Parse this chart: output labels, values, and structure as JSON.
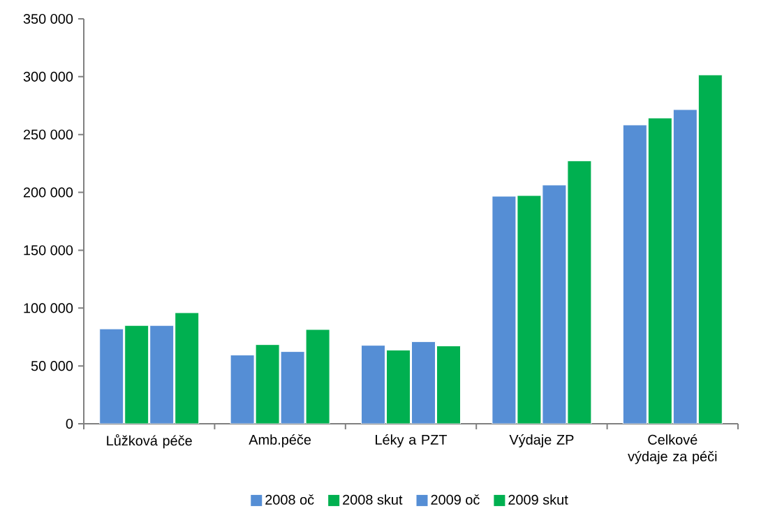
{
  "chart_data": {
    "type": "bar",
    "categories": [
      "Lůžková péče",
      "Amb.péče",
      "Léky a PZT",
      "Výdaje ZP",
      "Celkové výdaje za péči"
    ],
    "series": [
      {
        "name": "2008 oč",
        "color": "#558ed5",
        "values": [
          82000,
          59400,
          67800,
          196700,
          258300
        ]
      },
      {
        "name": "2008 skut",
        "color": "#00b050",
        "values": [
          85000,
          68400,
          63700,
          197300,
          264300
        ]
      },
      {
        "name": "2009 oč",
        "color": "#558ed5",
        "values": [
          85000,
          62400,
          71000,
          206400,
          271600
        ]
      },
      {
        "name": "2009 skut",
        "color": "#00b050",
        "values": [
          96000,
          81500,
          67300,
          227300,
          301600
        ]
      }
    ],
    "ylim": [
      0,
      350000
    ],
    "yticks": [
      {
        "value": 0,
        "label": "0"
      },
      {
        "value": 50000,
        "label": "50 000"
      },
      {
        "value": 100000,
        "label": "100 000"
      },
      {
        "value": 150000,
        "label": "150 000"
      },
      {
        "value": 200000,
        "label": "200 000"
      },
      {
        "value": 250000,
        "label": "250 000"
      },
      {
        "value": 300000,
        "label": "300 000"
      },
      {
        "value": 350000,
        "label": "350 000"
      }
    ],
    "grid": false,
    "legend": "bottom"
  }
}
